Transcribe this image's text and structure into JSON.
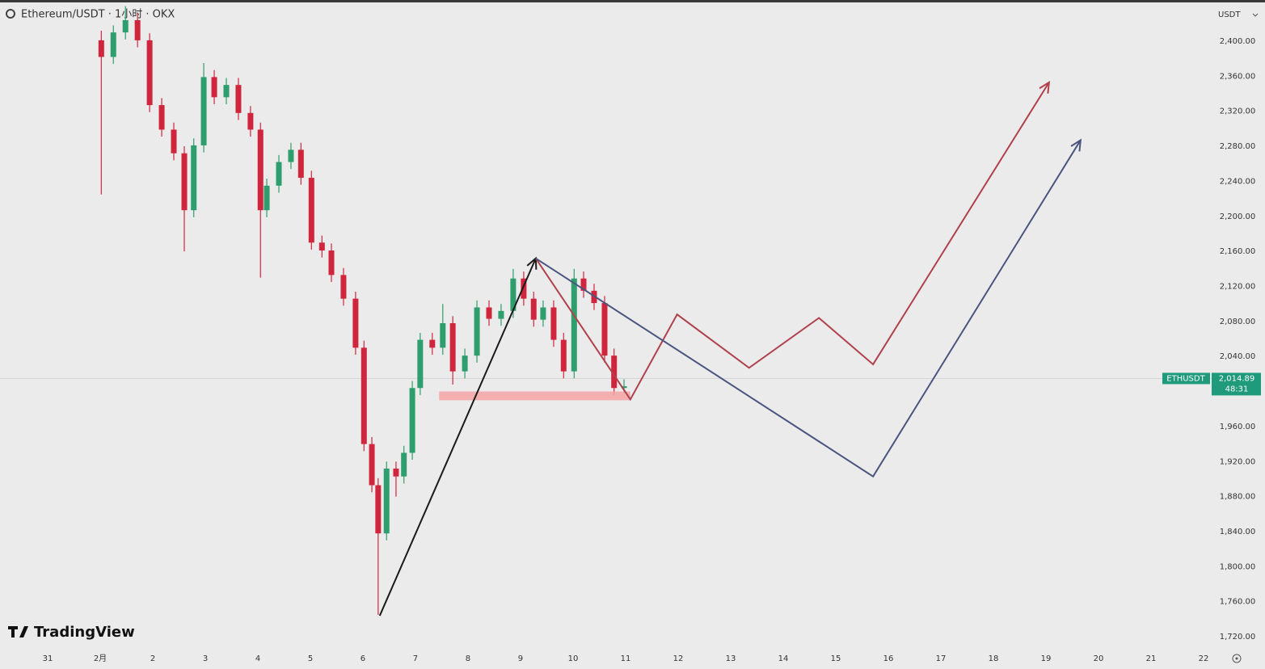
{
  "chart_data": {
    "type": "candlestick",
    "title": "Ethereum/USDT · 1小时 · OKX",
    "currency": "USDT",
    "brand": "TradingView",
    "xlim": [
      -0.908,
      22.17
    ],
    "xticks": [
      {
        "value": 0,
        "label": "31"
      },
      {
        "value": 1,
        "label": "2月"
      },
      2,
      3,
      4,
      5,
      6,
      7,
      8,
      9,
      10,
      11,
      12,
      13,
      14,
      15,
      16,
      17,
      18,
      19,
      20,
      21,
      22
    ],
    "ylim": [
      1709,
      2447
    ],
    "yticks": [
      {
        "value": 1720,
        "label": "1,720.00"
      },
      {
        "value": 1760,
        "label": "1,760.00"
      },
      {
        "value": 1800,
        "label": "1,800.00"
      },
      {
        "value": 1840,
        "label": "1,840.00"
      },
      {
        "value": 1880,
        "label": "1,880.00"
      },
      {
        "value": 1920,
        "label": "1,920.00"
      },
      {
        "value": 1960,
        "label": "1,960.00"
      },
      {
        "value": 2040,
        "label": "2,040.00"
      },
      {
        "value": 2080,
        "label": "2,080.00"
      },
      {
        "value": 2120,
        "label": "2,120.00"
      },
      {
        "value": 2160,
        "label": "2,160.00"
      },
      {
        "value": 2200,
        "label": "2,200.00"
      },
      {
        "value": 2240,
        "label": "2,240.00"
      },
      {
        "value": 2280,
        "label": "2,280.00"
      },
      {
        "value": 2320,
        "label": "2,320.00"
      },
      {
        "value": 2360,
        "label": "2,360.00"
      },
      {
        "value": 2400,
        "label": "2,400.00"
      }
    ],
    "grid": false,
    "up_color": "#2f9e6e",
    "down_color": "#d0263d",
    "x": [
      1.02,
      1.25,
      1.48,
      1.71,
      1.94,
      2.17,
      2.4,
      2.6,
      2.78,
      2.97,
      3.17,
      3.4,
      3.63,
      3.86,
      4.05,
      4.17,
      4.4,
      4.63,
      4.82,
      5.02,
      5.22,
      5.4,
      5.63,
      5.86,
      6.02,
      6.17,
      6.29,
      6.45,
      6.63,
      6.78,
      6.94,
      7.09,
      7.32,
      7.52,
      7.71,
      7.94,
      8.17,
      8.4,
      8.63,
      8.86,
      9.06,
      9.25,
      9.43,
      9.63,
      9.82,
      10.02,
      10.2,
      10.4,
      10.6,
      10.78,
      10.97
    ],
    "open": [
      2401,
      2382,
      2410,
      2424,
      2401,
      2327,
      2299,
      2272,
      2207,
      2281,
      2359,
      2336,
      2350,
      2318,
      2299,
      2207,
      2235,
      2262,
      2276,
      2244,
      2170,
      2161,
      2133,
      2106,
      2050,
      1940,
      1893,
      1838,
      1912,
      1903,
      1930,
      2004,
      2059,
      2050,
      2078,
      2023,
      2041,
      2096,
      2083,
      2092,
      2129,
      2106,
      2082,
      2096,
      2059,
      2023,
      2129,
      2115,
      2101,
      2041,
      2004
    ],
    "high": [
      2412,
      2418,
      2440,
      2432,
      2409,
      2335,
      2307,
      2280,
      2289,
      2375,
      2367,
      2358,
      2358,
      2326,
      2307,
      2243,
      2270,
      2284,
      2284,
      2252,
      2178,
      2169,
      2141,
      2114,
      2058,
      1948,
      1901,
      1920,
      1920,
      1938,
      2012,
      2067,
      2067,
      2100,
      2086,
      2049,
      2104,
      2104,
      2100,
      2140,
      2137,
      2114,
      2104,
      2104,
      2067,
      2140,
      2137,
      2123,
      2109,
      2049,
      2014
    ],
    "low": [
      2225,
      2374,
      2402,
      2393,
      2319,
      2291,
      2264,
      2160,
      2199,
      2273,
      2328,
      2328,
      2310,
      2291,
      2130,
      2199,
      2227,
      2254,
      2236,
      2162,
      2153,
      2125,
      2098,
      2042,
      1932,
      1885,
      1745,
      1830,
      1880,
      1895,
      1922,
      1996,
      2042,
      2042,
      2008,
      2015,
      2033,
      2075,
      2075,
      2084,
      2098,
      2074,
      2074,
      2051,
      2015,
      2015,
      2107,
      2093,
      2033,
      1996,
      1998
    ],
    "close": [
      2382,
      2410,
      2424,
      2401,
      2327,
      2299,
      2272,
      2207,
      2281,
      2359,
      2336,
      2350,
      2318,
      2299,
      2207,
      2235,
      2262,
      2276,
      2244,
      2170,
      2161,
      2133,
      2106,
      2050,
      1940,
      1893,
      1838,
      1912,
      1903,
      1930,
      2004,
      2059,
      2050,
      2078,
      2023,
      2041,
      2096,
      2083,
      2092,
      2129,
      2106,
      2082,
      2096,
      2059,
      2023,
      2129,
      2115,
      2101,
      2041,
      2004,
      2006
    ],
    "last_price": {
      "symbol": "ETHUSDT",
      "value": 2014.89,
      "label": "2,014.89",
      "countdown": "48:31",
      "color": "#1f9a7a"
    },
    "drawings": [
      {
        "type": "zone",
        "color": "#f4a4a4",
        "x": [
          7.45,
          11.09
        ],
        "y": [
          1990,
          2000
        ]
      },
      {
        "type": "arrow",
        "color": "#1a1a1a",
        "x": [
          6.32,
          9.29
        ],
        "y": [
          1744,
          2152
        ]
      },
      {
        "type": "arrow",
        "color": "#b0404c",
        "x": [
          9.29,
          11.09,
          11.98,
          13.35,
          14.68,
          15.71,
          19.06
        ],
        "y": [
          2152,
          1991,
          2088,
          2027,
          2084,
          2031,
          2353
        ]
      },
      {
        "type": "arrow",
        "color": "#4a5580",
        "x": [
          9.29,
          15.71,
          19.66
        ],
        "y": [
          2152,
          1903,
          2287
        ]
      }
    ]
  }
}
